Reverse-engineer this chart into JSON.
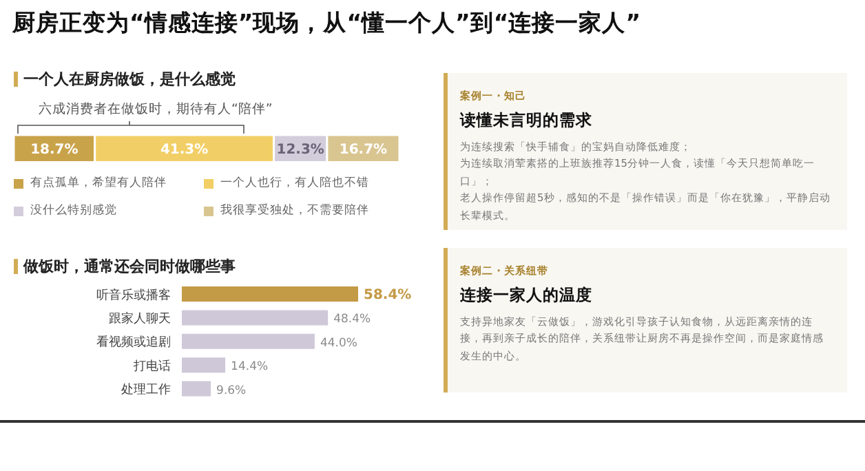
{
  "chart_data": [
    {
      "type": "bar",
      "title": "厨房正变为“情感连接”现场，从“懂一个人”到“连接一家人”",
      "subtitle": "一个人在厨房做饭，是什么感觉",
      "orientation": "horizontal",
      "stacked": true,
      "categories": [
        null
      ],
      "xlim": [
        0,
        89
      ],
      "tick_labels": false,
      "legend": "bottom",
      "annotations": [
        "六成消费者在做饭时，期待有人“陪伴”"
      ],
      "series": [
        {
          "name": "有点孤单，希望有人陪伴",
          "color": "#c9a34a",
          "values": [
            18.7
          ],
          "value_labels": [
            "18.7%"
          ]
        },
        {
          "name": "一个人也行，有人陪也不错",
          "color": "#f2cf66",
          "values": [
            41.3
          ],
          "value_labels": [
            "41.3%"
          ]
        },
        {
          "name": "没什么特别感觉",
          "color": "#d3ccdb",
          "values": [
            12.3
          ],
          "value_labels": [
            "12.3%"
          ]
        },
        {
          "name": "我很享受独处，不需要陪伴",
          "color": "#d9c590",
          "values": [
            16.7
          ],
          "value_labels": [
            "16.7%"
          ]
        }
      ]
    },
    {
      "type": "bar",
      "title": "做饭时，通常还会同时做哪些事",
      "orientation": "horizontal",
      "categories": [
        "听音乐或播客",
        "跟家人聊天",
        "看视频或追剧",
        "打电话",
        "处理工作"
      ],
      "values": [
        58.4,
        48.4,
        44.0,
        14.4,
        9.6
      ],
      "colors": [
        "#c39a45",
        "#cfc8d8",
        "#cfc8d8",
        "#cfc8d8",
        "#cfc8d8"
      ],
      "value_labels": [
        "58.4%",
        "48.4%",
        "44.0%",
        "14.4%",
        "9.6%"
      ],
      "tick_labels": "y"
    },
    {
      "type": "other",
      "subtitle": "案例一 · 知己",
      "title": "读懂未言明的需求",
      "annotations": [
        "为连续搜索「快手辅食」的宝妈自动降低难度；",
        "为连续取消荤素搭的上班族推荐15分钟一人食，读懂「今天只想简单吃一口」；",
        "老人操作停留超5秒，感知的不是「操作错误」而是「你在犹豫」，平静启动长辈模式。"
      ]
    },
    {
      "type": "other",
      "subtitle": "案例二 · 关系纽带",
      "title": "连接一家人的温度",
      "annotations": [
        "支持异地家友「云做饭」，游戏化引导孩子认知食物，从远距离亲情的连接，再到亲子成长的陪伴，关系纽带让厨房不再是操作空间，而是家庭情感发生的中心。"
      ]
    }
  ]
}
